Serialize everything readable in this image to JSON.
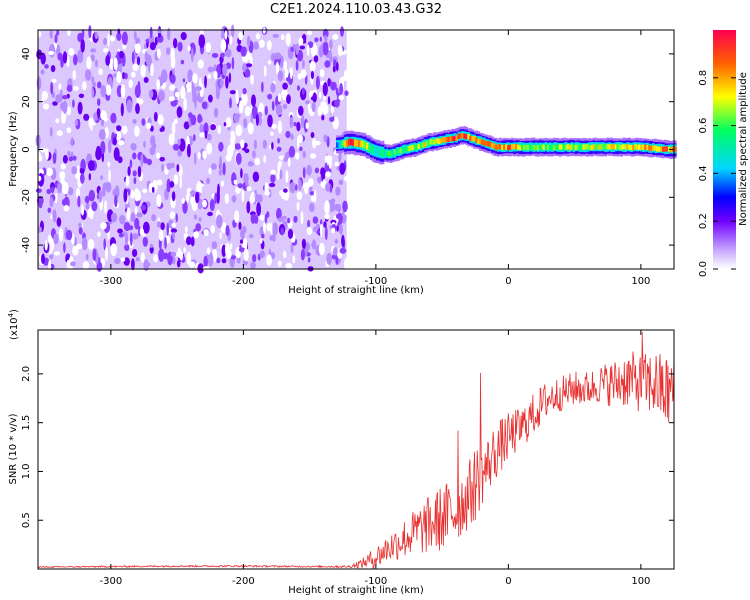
{
  "title": "C2E1.2024.110.03.43.G32",
  "chart_data": [
    {
      "type": "heatmap",
      "xlabel": "Height of straight line (km)",
      "ylabel": "Frequency (Hz)",
      "xlim": [
        -355,
        125
      ],
      "ylim": [
        -50,
        50
      ],
      "xticks": [
        -300,
        -200,
        -100,
        0,
        100
      ],
      "yticks": [
        -40,
        -20,
        0,
        20,
        40
      ],
      "colorbar": {
        "label": "Normalized spectral amplitude",
        "range": [
          0,
          1
        ],
        "ticks": [
          0.0,
          0.2,
          0.4,
          0.6,
          0.8
        ],
        "colormap": [
          "#ffffff",
          "#c7a6ff",
          "#7000ff",
          "#0000ff",
          "#00d6ff",
          "#00ff60",
          "#ffff00",
          "#ff6000",
          "#ff0050"
        ]
      },
      "noise_region": {
        "x_range": [
          -355,
          -122
        ],
        "freq_range": [
          -50,
          50
        ],
        "amplitude_approx": [
          0.0,
          0.25
        ]
      },
      "signal_track": {
        "x": [
          -130,
          -120,
          -110,
          -100,
          -90,
          -80,
          -70,
          -60,
          -50,
          -40,
          -35,
          -30,
          -20,
          -10,
          0,
          10,
          20,
          40,
          60,
          80,
          100,
          120,
          125
        ],
        "frequency": [
          2,
          3,
          2,
          -1,
          -2,
          0,
          1,
          3,
          4,
          5,
          6,
          5,
          3,
          1,
          1,
          1,
          1,
          1,
          1,
          1,
          1,
          0,
          0
        ],
        "peak_amplitude": [
          0.4,
          0.9,
          0.75,
          0.5,
          0.6,
          0.65,
          0.7,
          0.75,
          0.9,
          0.95,
          0.95,
          0.85,
          0.8,
          0.85,
          0.9,
          0.7,
          0.65,
          0.7,
          0.7,
          0.75,
          0.8,
          0.85,
          0.8
        ]
      },
      "grid": false
    },
    {
      "type": "line",
      "xlabel": "Height of straight line (km)",
      "ylabel": "SNR (10 * v/v)",
      "scale_label": "(x10",
      "scale_exponent": "4",
      "scale_suffix": ")",
      "xlim": [
        -355,
        125
      ],
      "ylim": [
        0,
        24500
      ],
      "xticks": [
        -300,
        -200,
        -100,
        0,
        100
      ],
      "yticks": [
        0.5,
        1.0,
        1.5,
        2.0
      ],
      "color": "#e83030",
      "series": [
        {
          "x": [
            -355,
            -300,
            -250,
            -200,
            -150,
            -120,
            -110,
            -100,
            -90,
            -80,
            -70,
            -60,
            -50,
            -40,
            -30,
            -24,
            -20,
            -10,
            0,
            10,
            20,
            30,
            40,
            50,
            60,
            70,
            80,
            90,
            100,
            110,
            120,
            125
          ],
          "y": [
            200,
            250,
            300,
            300,
            250,
            250,
            600,
            1200,
            2200,
            3000,
            3800,
            4500,
            5200,
            6000,
            7500,
            9000,
            9500,
            12000,
            13500,
            14500,
            16000,
            17500,
            18000,
            18500,
            18500,
            19000,
            19000,
            19500,
            19000,
            19000,
            18000,
            18500
          ],
          "amplitude": [
            60,
            80,
            90,
            90,
            80,
            120,
            500,
            1200,
            1500,
            2000,
            2500,
            3000,
            3500,
            3500,
            3500,
            4000,
            3000,
            3000,
            2500,
            2200,
            2200,
            2000,
            1800,
            1800,
            1800,
            2000,
            2500,
            3000,
            3000,
            3500,
            4000,
            4000
          ]
        }
      ],
      "spikes": [
        {
          "x": -21,
          "y": 20100
        },
        {
          "x": 101,
          "y": 24300
        },
        {
          "x": -38,
          "y": 14200
        }
      ],
      "grid": false
    }
  ]
}
